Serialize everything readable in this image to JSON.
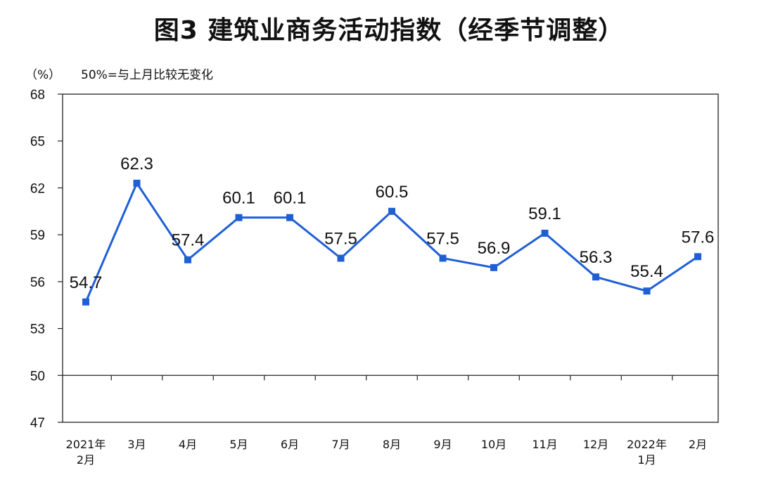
{
  "chart_data": {
    "type": "line",
    "title": "图3 建筑业商务活动指数（经季节调整）",
    "unit_label": "（%）",
    "reference_note": "50%=与上月比较无变化",
    "categories": [
      [
        "2021年",
        "2月"
      ],
      [
        "3月"
      ],
      [
        "4月"
      ],
      [
        "5月"
      ],
      [
        "6月"
      ],
      [
        "7月"
      ],
      [
        "8月"
      ],
      [
        "9月"
      ],
      [
        "10月"
      ],
      [
        "11月"
      ],
      [
        "12月"
      ],
      [
        "2022年",
        "1月"
      ],
      [
        "2月"
      ]
    ],
    "series": [
      {
        "values": [
          54.7,
          62.3,
          57.4,
          60.1,
          60.1,
          57.5,
          60.5,
          57.5,
          56.9,
          59.1,
          56.3,
          55.4,
          57.6
        ],
        "labels": [
          "54.7",
          "62.3",
          "57.4",
          "60.1",
          "60.1",
          "57.5",
          "60.5",
          "57.5",
          "56.9",
          "59.1",
          "56.3",
          "55.4",
          "57.6"
        ],
        "color": "#1f5fd6"
      }
    ],
    "ylim": [
      47,
      68
    ],
    "yticks": [
      47,
      50,
      53,
      56,
      59,
      62,
      65,
      68
    ],
    "reference_line": 50,
    "grid": false,
    "legend": "none"
  }
}
